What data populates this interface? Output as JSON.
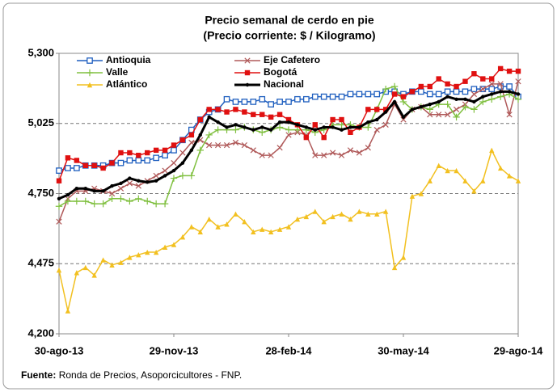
{
  "chart_data": {
    "type": "line",
    "title": "Precio semanal de cerdo en pie",
    "subtitle": "(Precio corriente: $ / Kilogramo)",
    "categories": [
      "30-ago-13",
      null,
      null,
      null,
      null,
      null,
      null,
      null,
      null,
      null,
      null,
      null,
      null,
      "29-nov-13",
      null,
      null,
      null,
      null,
      null,
      null,
      null,
      null,
      null,
      null,
      null,
      null,
      "28-feb-14",
      null,
      null,
      null,
      null,
      null,
      null,
      null,
      null,
      null,
      null,
      null,
      null,
      "30-may-14",
      null,
      null,
      null,
      null,
      null,
      null,
      null,
      null,
      null,
      null,
      null,
      null,
      "29-ago-14"
    ],
    "ylim": [
      4200,
      5300
    ],
    "yticks": [
      {
        "value": 4200,
        "label": "4,200"
      },
      {
        "value": 4475,
        "label": "4,475"
      },
      {
        "value": 4750,
        "label": "4,750"
      },
      {
        "value": 5025,
        "label": "5,025"
      },
      {
        "value": 5300,
        "label": "5,300"
      }
    ],
    "grid": true,
    "series": [
      {
        "name": "Antioquia",
        "color": "#1f5fbf",
        "marker": "square-open",
        "values": [
          4840,
          4850,
          4850,
          4860,
          4860,
          4860,
          4870,
          4870,
          4880,
          4880,
          4880,
          4890,
          4900,
          4920,
          4960,
          5000,
          5040,
          5070,
          5080,
          5120,
          5110,
          5110,
          5110,
          5120,
          5100,
          5110,
          5110,
          5120,
          5120,
          5130,
          5130,
          5130,
          5130,
          5140,
          5140,
          5140,
          5140,
          5150,
          5150,
          5140,
          5150,
          5150,
          5140,
          5140,
          5150,
          5150,
          5150,
          5160,
          5160,
          5160,
          5170,
          5170,
          5130
        ]
      },
      {
        "name": "Eje Cafetero",
        "color": "#b05a5a",
        "marker": "x",
        "values": [
          4640,
          4730,
          4760,
          4760,
          4770,
          4760,
          4750,
          4770,
          4790,
          4780,
          4800,
          4820,
          4840,
          4870,
          4910,
          4950,
          4960,
          4940,
          4940,
          4940,
          4950,
          4940,
          4920,
          4900,
          4900,
          4930,
          4980,
          4990,
          4980,
          4900,
          4900,
          4910,
          4900,
          4920,
          4910,
          4930,
          5000,
          5020,
          5100,
          5040,
          5080,
          5090,
          5060,
          5060,
          5060,
          5080,
          5100,
          5140,
          5160,
          5180,
          5180,
          5060,
          5190
        ]
      },
      {
        "name": "Valle",
        "color": "#80c040",
        "marker": "plus",
        "values": [
          4700,
          4720,
          4720,
          4720,
          4710,
          4710,
          4730,
          4730,
          4720,
          4730,
          4720,
          4710,
          4710,
          4810,
          4820,
          4820,
          4920,
          4980,
          5000,
          5000,
          5000,
          5010,
          5000,
          4990,
          5000,
          5010,
          5000,
          5000,
          5000,
          4990,
          5000,
          5020,
          5020,
          5020,
          5010,
          5010,
          5080,
          5160,
          5170,
          5110,
          5080,
          5090,
          5080,
          5100,
          5100,
          5050,
          5090,
          5080,
          5110,
          5120,
          5130,
          5140,
          5120
        ]
      },
      {
        "name": "Bogotá",
        "color": "#e01010",
        "marker": "square",
        "values": [
          4800,
          4890,
          4880,
          4860,
          4860,
          4850,
          4870,
          4910,
          4910,
          4900,
          4910,
          4920,
          4920,
          4940,
          4960,
          4980,
          5040,
          5080,
          5080,
          5070,
          5080,
          5070,
          5060,
          5060,
          5050,
          5060,
          5040,
          5020,
          4970,
          5020,
          4970,
          5040,
          5040,
          4990,
          5010,
          5080,
          5080,
          5080,
          5140,
          5130,
          5150,
          5170,
          5170,
          5200,
          5180,
          5170,
          5190,
          5220,
          5200,
          5200,
          5240,
          5230,
          5230
        ]
      },
      {
        "name": "Atlántico",
        "color": "#f2c020",
        "marker": "triangle",
        "values": [
          4450,
          4290,
          4440,
          4460,
          4430,
          4490,
          4470,
          4480,
          4500,
          4510,
          4520,
          4520,
          4540,
          4550,
          4580,
          4620,
          4600,
          4650,
          4620,
          4630,
          4670,
          4640,
          4600,
          4610,
          4600,
          4610,
          4620,
          4650,
          4660,
          4680,
          4640,
          4660,
          4670,
          4650,
          4680,
          4670,
          4670,
          4680,
          4460,
          4500,
          4740,
          4750,
          4800,
          4860,
          4840,
          4840,
          4800,
          4760,
          4800,
          4920,
          4850,
          4820,
          4800
        ]
      },
      {
        "name": "Nacional",
        "color": "#000000",
        "marker": "dot",
        "values": [
          4730,
          4745,
          4770,
          4770,
          4760,
          4760,
          4780,
          4790,
          4810,
          4800,
          4795,
          4800,
          4820,
          4840,
          4870,
          4920,
          4980,
          5050,
          5030,
          5010,
          5020,
          5010,
          5000,
          5010,
          5000,
          5030,
          5030,
          5020,
          5010,
          5000,
          5010,
          5010,
          5000,
          5010,
          5010,
          5030,
          5040,
          5070,
          5110,
          5050,
          5080,
          5090,
          5100,
          5110,
          5130,
          5120,
          5120,
          5110,
          5130,
          5140,
          5150,
          5150,
          5140
        ]
      }
    ],
    "source": {
      "label": "Fuente:",
      "text": "Ronda de Precios, Asoporcicultores  - FNP."
    }
  }
}
